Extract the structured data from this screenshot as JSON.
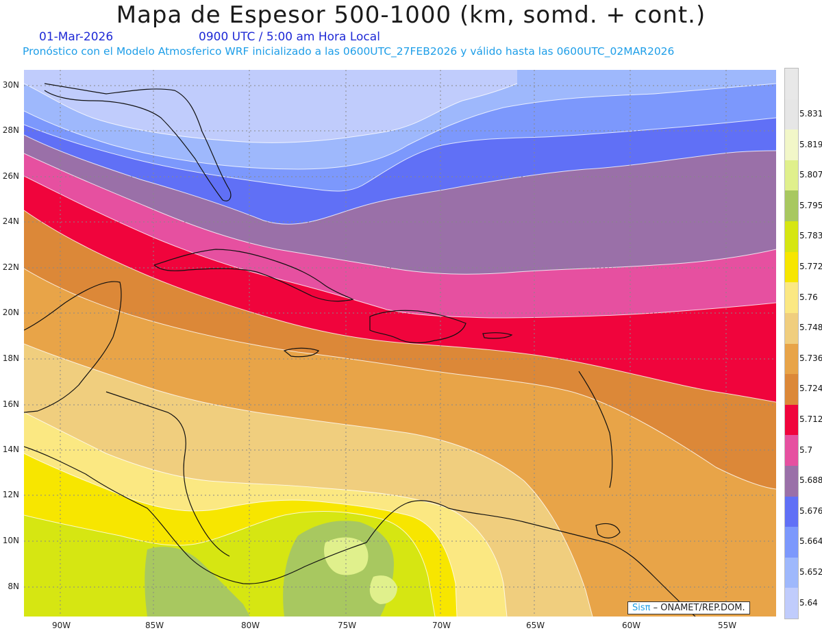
{
  "header": {
    "title": "Mapa de Espesor 500-1000 (km, somd. + cont.)",
    "date": "01-Mar-2026",
    "time": "0900 UTC / 5:00 am Hora Local",
    "subtitle": "Pronóstico con el Modelo Atmosferico WRF inicializado a las 0600UTC_27FEB2026 y válido hasta las  0600UTC_02MAR2026"
  },
  "axes": {
    "lat_labels": [
      "30N",
      "28N",
      "26N",
      "24N",
      "22N",
      "20N",
      "18N",
      "16N",
      "14N",
      "12N",
      "10N",
      "8N"
    ],
    "lon_labels": [
      "90W",
      "85W",
      "80W",
      "75W",
      "70W",
      "65W",
      "60W",
      "55W"
    ]
  },
  "colorbar": {
    "labels": [
      "5.831",
      "5.819",
      "5.807",
      "5.795",
      "5.783",
      "5.772",
      "5.76",
      "5.748",
      "5.736",
      "5.724",
      "5.712",
      "5.7",
      "5.688",
      "5.676",
      "5.664",
      "5.652",
      "5.64"
    ],
    "colors": [
      "#e6e6e6",
      "#f2f7c8",
      "#e0f08c",
      "#a8c860",
      "#d6e612",
      "#f7e600",
      "#fbe882",
      "#f0ce7e",
      "#e8a448",
      "#dc8838",
      "#f0043c",
      "#e650a0",
      "#9a70a8",
      "#6070f6",
      "#7c98fc",
      "#9eb8fc",
      "#c0ccfc"
    ]
  },
  "credit": {
    "sis": "Sisπ",
    "rest": " – ONAMET/REP.DOM."
  }
}
